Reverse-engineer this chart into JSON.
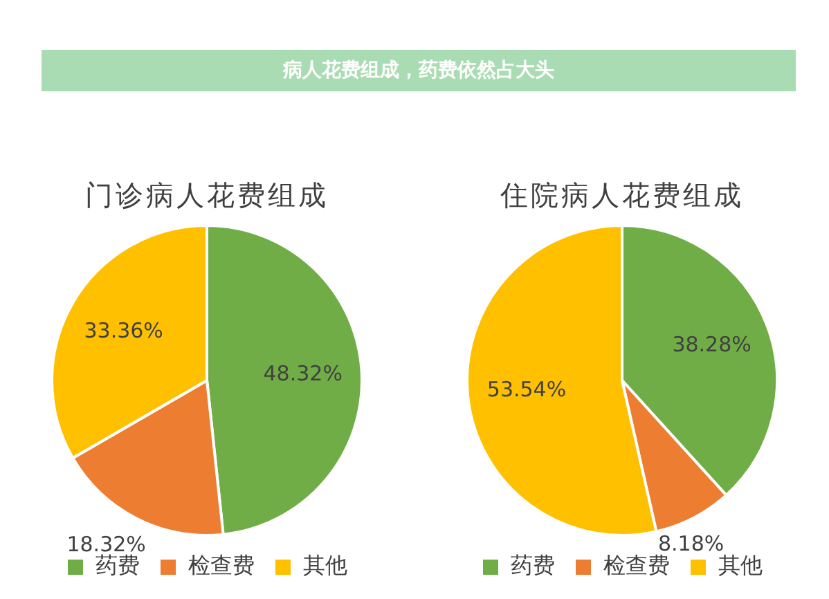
{
  "chart_data": [
    {
      "type": "pie",
      "title": "病人花费组成，药费依然占大头",
      "subtitle": "门诊病人花费组成",
      "categories": [
        "药费",
        "检查费",
        "其他"
      ],
      "values": [
        48.32,
        18.32,
        33.36
      ],
      "value_labels": [
        "48.32%",
        "18.32%",
        "33.36%"
      ],
      "colors": [
        "#70ad47",
        "#ed7d31",
        "#ffc000"
      ],
      "legend": "bottom"
    },
    {
      "type": "pie",
      "subtitle": "住院病人花费组成",
      "categories": [
        "药费",
        "检查费",
        "其他"
      ],
      "values": [
        38.28,
        8.18,
        53.54
      ],
      "value_labels": [
        "38.28%",
        "8.18%",
        "53.54%"
      ],
      "colors": [
        "#70ad47",
        "#ed7d31",
        "#ffc000"
      ],
      "legend": "bottom"
    }
  ]
}
